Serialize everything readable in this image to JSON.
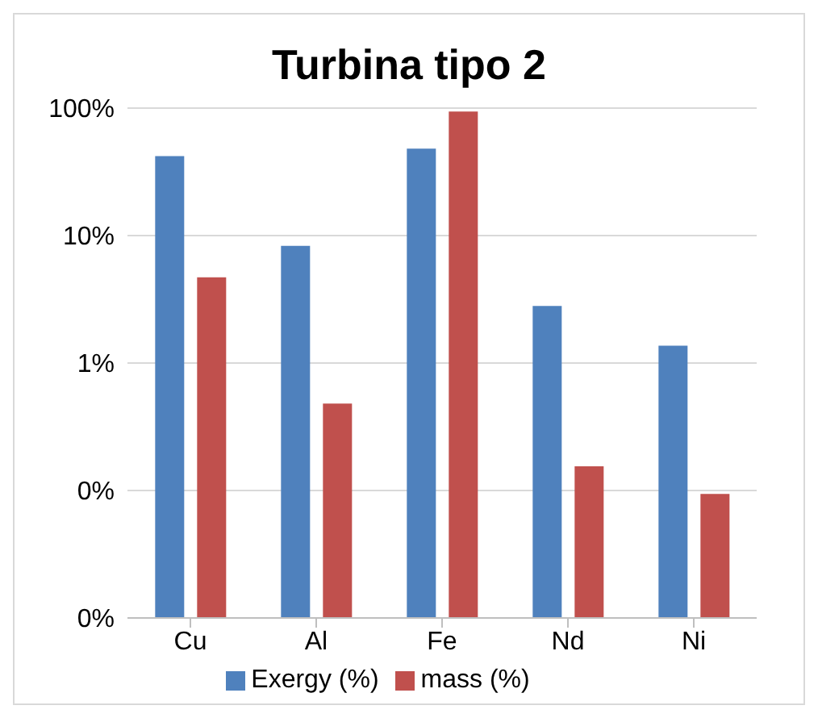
{
  "chart_data": {
    "type": "bar",
    "title": "Turbina tipo 2",
    "categories": [
      "Cu",
      "Al",
      "Fe",
      "Nd",
      "Ni"
    ],
    "series": [
      {
        "name": "Exergy (%)",
        "color": "#4f81bd",
        "values": [
          42,
          8.3,
          48,
          2.8,
          1.37
        ]
      },
      {
        "name": "mass (%)",
        "color": "#c0504d",
        "values": [
          4.7,
          0.48,
          94,
          0.155,
          0.094
        ]
      }
    ],
    "log": true,
    "ylim": [
      0.01,
      100
    ],
    "yticks": [
      {
        "value": 0.01,
        "label": "0%"
      },
      {
        "value": 0.1,
        "label": "0%"
      },
      {
        "value": 1,
        "label": "1%"
      },
      {
        "value": 10,
        "label": "10%"
      },
      {
        "value": 100,
        "label": "100%"
      }
    ],
    "grid": "y",
    "legend": "bottom"
  }
}
